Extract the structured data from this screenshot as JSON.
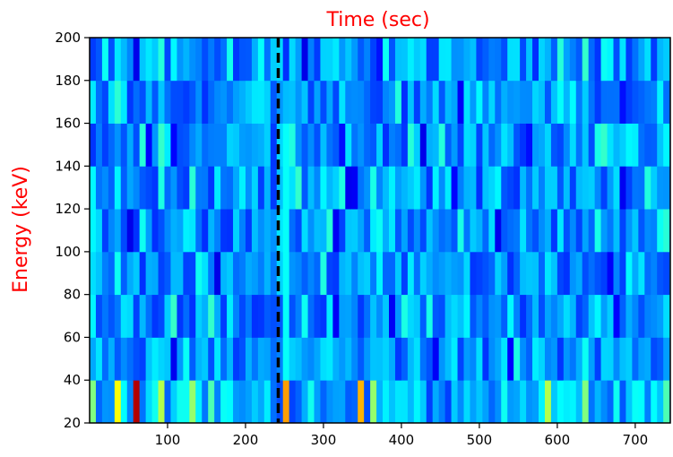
{
  "chart_data": {
    "type": "heatmap",
    "title": "",
    "xlabel": "Time (sec)",
    "ylabel": "Energy (keV)",
    "label_color": "#ff0000",
    "colormap": "jet",
    "xlim": [
      0,
      745
    ],
    "ylim": [
      20,
      200
    ],
    "x_ticks": [
      100,
      200,
      300,
      400,
      500,
      600,
      700
    ],
    "y_ticks": [
      20,
      40,
      60,
      80,
      100,
      120,
      140,
      160,
      180,
      200
    ],
    "time_bin_width_sec": 8,
    "energy_bin_edges": [
      20,
      40,
      60,
      80,
      100,
      120,
      140,
      160,
      180,
      200
    ],
    "marker": {
      "type": "vertical-dashed-line",
      "x": 242,
      "color": "#000000"
    },
    "grid": false,
    "bright_cells_energy_20_40": [
      {
        "t": 0,
        "level": 0.5
      },
      {
        "t": 32,
        "level": 0.62
      },
      {
        "t": 56,
        "level": 0.95
      },
      {
        "t": 88,
        "level": 0.55
      },
      {
        "t": 128,
        "level": 0.52
      },
      {
        "t": 152,
        "level": 0.45
      },
      {
        "t": 248,
        "level": 0.72
      },
      {
        "t": 344,
        "level": 0.7
      },
      {
        "t": 360,
        "level": 0.52
      },
      {
        "t": 584,
        "level": 0.55
      },
      {
        "t": 632,
        "level": 0.5
      },
      {
        "t": 736,
        "level": 0.45
      }
    ],
    "seed": 7
  }
}
